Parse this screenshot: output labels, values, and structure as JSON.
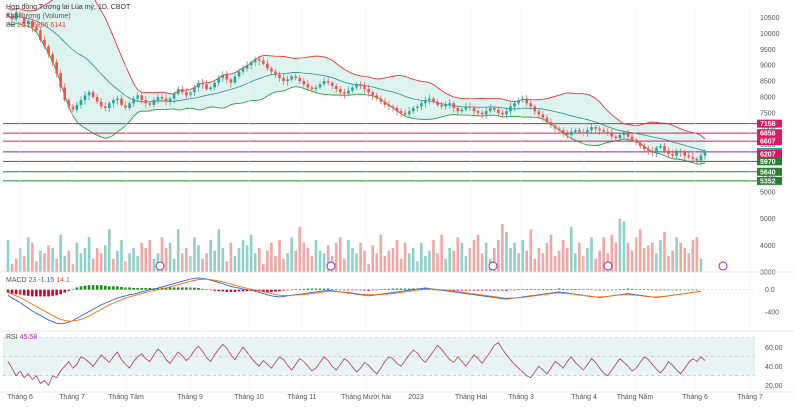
{
  "header": {
    "title": "Hợp đồng Tương lai Lúa mỳ, 1D, CBOT",
    "subtitle": "Khối lượng (Volume)",
    "bb_label": "BB",
    "bb_values": "20 2  6806  6141"
  },
  "colors": {
    "up": "#26a69a",
    "down": "#ef5350",
    "up_vol": "#8fd1c8",
    "down_vol": "#f4a6a3",
    "bb_upper": "#e53935",
    "bb_lower": "#2e9e3a",
    "bb_basis": "#2a8f86",
    "bb_fill": "#cfeeea",
    "hline_red": "#d81b60",
    "hline_green": "#2e7d32",
    "hline_purple": "#8e24aa",
    "macd_line": "#2962ff",
    "signal_line": "#ff6d00",
    "hist_pos": "#1b8a1b",
    "hist_neg": "#d1002a",
    "rsi_line": "#b0384f",
    "rsi_fill": "#e8f4f4",
    "axis_text": "#555555"
  },
  "chart_data": [
    {
      "type": "candlestick",
      "title": "Hợp đồng Tương lai Lúa mỳ, 1D, CBOT",
      "ylim": [
        4750,
        10900
      ],
      "y_ticks": [
        "10500",
        "10000",
        "9500",
        "9000",
        "8500",
        "8000",
        "7500",
        "7000",
        "6500",
        "6000",
        "5500",
        "5000"
      ],
      "x_ticks": [
        "Tháng 6",
        "Tháng 7",
        "Tháng Tám",
        "Tháng 9",
        "Tháng 10",
        "Tháng 11",
        "Tháng Mười hai",
        "2023",
        "Tháng Hai",
        "Tháng 3",
        "Tháng 4",
        "Tháng Năm",
        "Tháng 6",
        "Tháng 7"
      ],
      "closes": [
        10550,
        10450,
        10650,
        10500,
        10300,
        10400,
        10200,
        10100,
        9800,
        9600,
        9350,
        9100,
        8750,
        8300,
        7900,
        7700,
        7600,
        7750,
        7900,
        8050,
        8150,
        8000,
        7850,
        7700,
        7650,
        7800,
        7900,
        7950,
        7750,
        7650,
        7800,
        7950,
        8050,
        7900,
        7800,
        7750,
        7900,
        8000,
        7950,
        7850,
        7950,
        8100,
        8250,
        8150,
        8050,
        8150,
        8300,
        8450,
        8400,
        8250,
        8300,
        8450,
        8600,
        8700,
        8550,
        8450,
        8650,
        8800,
        8900,
        9000,
        9100,
        9200,
        9150,
        9050,
        8900,
        8800,
        8700,
        8600,
        8500,
        8550,
        8650,
        8600,
        8500,
        8400,
        8300,
        8250,
        8300,
        8400,
        8500,
        8450,
        8350,
        8250,
        8150,
        8100,
        8200,
        8300,
        8400,
        8350,
        8250,
        8150,
        8050,
        7950,
        7850,
        7750,
        7700,
        7650,
        7550,
        7500,
        7450,
        7550,
        7650,
        7700,
        7800,
        7900,
        7950,
        7850,
        7750,
        7700,
        7750,
        7800,
        7650,
        7550,
        7600,
        7700,
        7650,
        7550,
        7500,
        7450,
        7550,
        7650,
        7600,
        7500,
        7450,
        7550,
        7700,
        7800,
        7900,
        7950,
        7800,
        7700,
        7550,
        7450,
        7350,
        7200,
        7100,
        7000,
        6950,
        6850,
        6800,
        6900,
        6950,
        6900,
        6850,
        6950,
        7050,
        7000,
        6950,
        6900,
        6850,
        6750,
        6700,
        6800,
        6850,
        6750,
        6650,
        6550,
        6450,
        6350,
        6300,
        6250,
        6400,
        6450,
        6300,
        6200,
        6150,
        6300,
        6250,
        6150,
        6100,
        6050,
        6000,
        6150,
        6250
      ],
      "y_labels_right": [
        {
          "value": 7158,
          "color": "#d81b60"
        },
        {
          "value": 6858,
          "color": "#d81b60"
        },
        {
          "value": 6607,
          "color": "#d81b60"
        },
        {
          "value": 6269,
          "color": "#26a69a"
        },
        {
          "value": 6207,
          "color": "#d81b60"
        },
        {
          "value": 5970,
          "color": "#2e7d32"
        },
        {
          "value": 5640,
          "color": "#2e7d32"
        },
        {
          "value": 5352,
          "color": "#2e7d32"
        }
      ],
      "horizontal_levels": [
        {
          "value": 7158,
          "color": "#d81b60"
        },
        {
          "value": 6858,
          "color": "#d81b60"
        },
        {
          "value": 6607,
          "color": "#d81b60"
        },
        {
          "value": 6269,
          "color": "#8e24aa"
        },
        {
          "value": 5970,
          "color": "#2e7d32"
        },
        {
          "value": 5640,
          "color": "#2e7d32"
        },
        {
          "value": 5352,
          "color": "#2e7d32"
        }
      ]
    },
    {
      "type": "bar",
      "title": "Volume",
      "ylim": [
        3000,
        5700
      ],
      "y_ticks": [
        "5000",
        "4000",
        "3000"
      ],
      "values": [
        4200,
        3300,
        3500,
        3900,
        3600,
        4300,
        4100,
        3400,
        3800,
        3700,
        4000,
        3900,
        3500,
        4400,
        3600,
        3800,
        3300,
        4100,
        3700,
        3900,
        4300,
        3500,
        3900,
        3700,
        4000,
        4600,
        3500,
        3800,
        4200,
        3400,
        3700,
        3900,
        3600,
        4100,
        3900,
        4200,
        3500,
        3700,
        4300,
        3900,
        4100,
        3500,
        4600,
        3700,
        3900,
        3600,
        4300,
        4000,
        3500,
        3700,
        4200,
        3800,
        4600,
        3900,
        3400,
        4100,
        3600,
        3900,
        4200,
        4000,
        4400,
        3700,
        3900,
        3300,
        3800,
        4100,
        3600,
        4200,
        3500,
        3700,
        4300,
        3800,
        4700,
        4100,
        3900,
        3600,
        4200,
        3800,
        3700,
        4000,
        3600,
        4100,
        4300,
        3500,
        4200,
        3900,
        3700,
        4100,
        3800,
        3300,
        4000,
        3700,
        4400,
        3600,
        3800,
        3900,
        4200,
        3500,
        4100,
        3700,
        3900,
        3400,
        4100,
        3600,
        3800,
        4200,
        3700,
        4400,
        3500,
        3900,
        3800,
        4300,
        4100,
        3600,
        3900,
        4200,
        4400,
        3700,
        4100,
        3500,
        3900,
        4200,
        4800,
        4500,
        3900,
        4100,
        3700,
        4200,
        3800,
        4600,
        3500,
        3900,
        3700,
        4100,
        4400,
        3600,
        3800,
        4200,
        3900,
        4700,
        3700,
        4100,
        3600,
        3900,
        4300,
        3500,
        3800,
        4300,
        3700,
        4400,
        4100,
        5000,
        4900,
        4100,
        3800,
        4300,
        4600,
        3900,
        4000,
        4100,
        3700,
        4200,
        4500,
        3600,
        3800,
        4300,
        4100,
        3900,
        3700,
        4200,
        4300,
        3500
      ],
      "up_flags": [
        1,
        0,
        0,
        1,
        0,
        1,
        0,
        0,
        1,
        0,
        0,
        1,
        0,
        1,
        1,
        0,
        0,
        1,
        1,
        1,
        1,
        0,
        0,
        0,
        1,
        1,
        0,
        1,
        1,
        0,
        1,
        1,
        1,
        0,
        0,
        0,
        1,
        1,
        0,
        0,
        1,
        1,
        1,
        0,
        0,
        1,
        1,
        1,
        0,
        0,
        1,
        1,
        1,
        1,
        0,
        0,
        1,
        1,
        1,
        1,
        1,
        1,
        0,
        0,
        0,
        0,
        0,
        0,
        0,
        1,
        1,
        0,
        0,
        0,
        0,
        0,
        1,
        1,
        1,
        0,
        0,
        0,
        0,
        0,
        1,
        1,
        1,
        0,
        0,
        0,
        0,
        0,
        0,
        0,
        0,
        0,
        0,
        0,
        0,
        1,
        1,
        1,
        1,
        1,
        1,
        0,
        0,
        0,
        1,
        1,
        0,
        0,
        1,
        1,
        0,
        0,
        0,
        0,
        1,
        1,
        0,
        0,
        0,
        1,
        1,
        1,
        1,
        1,
        0,
        0,
        0,
        0,
        0,
        0,
        0,
        0,
        0,
        0,
        0,
        1,
        1,
        0,
        0,
        1,
        1,
        0,
        0,
        0,
        0,
        0,
        0,
        1,
        1,
        0,
        0,
        0,
        0,
        0,
        0,
        0,
        1,
        1,
        0,
        0,
        0,
        1,
        0,
        0,
        0,
        0,
        0,
        1,
        1
      ]
    },
    {
      "type": "macd",
      "title": "MACD",
      "legend_values": [
        "23",
        "-1.15",
        "14.1"
      ],
      "ylim": [
        -720,
        280
      ],
      "y_ticks": [
        "0.0",
        "-400"
      ],
      "macd": [
        -100,
        -150,
        -190,
        -230,
        -280,
        -330,
        -380,
        -420,
        -460,
        -500,
        -540,
        -570,
        -600,
        -610,
        -600,
        -580,
        -550,
        -510,
        -470,
        -430,
        -390,
        -350,
        -310,
        -270,
        -240,
        -210,
        -180,
        -150,
        -130,
        -110,
        -90,
        -80,
        -60,
        -40,
        -20,
        0,
        10,
        30,
        50,
        70,
        90,
        110,
        130,
        150,
        170,
        190,
        200,
        210,
        200,
        190,
        170,
        150,
        130,
        110,
        80,
        60,
        40,
        30,
        10,
        0,
        -10,
        -30,
        -50,
        -70,
        -90,
        -110,
        -120,
        -130,
        -120,
        -110,
        -100,
        -90,
        -80,
        -70,
        -60,
        -50,
        -40,
        -30,
        -20,
        -10,
        -20,
        -30,
        -40,
        -50,
        -60,
        -70,
        -80,
        -90,
        -100,
        -110,
        -100,
        -90,
        -80,
        -70,
        -60,
        -50,
        -40,
        -30,
        -20,
        -10,
        0,
        10,
        20,
        30,
        20,
        10,
        0,
        -10,
        -20,
        -30,
        -40,
        -50,
        -60,
        -70,
        -80,
        -90,
        -100,
        -110,
        -120,
        -130,
        -140,
        -150,
        -160,
        -170,
        -160,
        -150,
        -140,
        -130,
        -120,
        -110,
        -100,
        -90,
        -80,
        -70,
        -60,
        -50,
        -40,
        -50,
        -60,
        -70,
        -80,
        -90,
        -100,
        -110,
        -120,
        -130,
        -140,
        -130,
        -120,
        -110,
        -100,
        -90,
        -80,
        -70,
        -80,
        -90,
        -100,
        -110,
        -120,
        -130,
        -140,
        -130,
        -120,
        -110,
        -100,
        -90,
        -80,
        -70,
        -60,
        -50,
        -40,
        -30
      ],
      "signal": [
        -50,
        -80,
        -110,
        -140,
        -180,
        -220,
        -260,
        -300,
        -340,
        -380,
        -420,
        -460,
        -500,
        -530,
        -550,
        -560,
        -560,
        -550,
        -530,
        -500,
        -470,
        -430,
        -390,
        -350,
        -310,
        -270,
        -240,
        -210,
        -180,
        -150,
        -130,
        -110,
        -90,
        -70,
        -50,
        -30,
        -15,
        0,
        15,
        30,
        50,
        70,
        90,
        110,
        130,
        150,
        165,
        180,
        185,
        185,
        180,
        170,
        155,
        140,
        120,
        100,
        80,
        60,
        40,
        25,
        10,
        -5,
        -20,
        -35,
        -50,
        -70,
        -85,
        -100,
        -105,
        -105,
        -100,
        -95,
        -90,
        -85,
        -80,
        -70,
        -60,
        -50,
        -40,
        -30,
        -30,
        -35,
        -40,
        -45,
        -50,
        -60,
        -70,
        -80,
        -85,
        -90,
        -90,
        -88,
        -85,
        -80,
        -75,
        -70,
        -60,
        -50,
        -40,
        -30,
        -20,
        -10,
        0,
        10,
        10,
        10,
        5,
        0,
        -5,
        -15,
        -25,
        -35,
        -45,
        -55,
        -65,
        -75,
        -85,
        -95,
        -105,
        -115,
        -125,
        -135,
        -145,
        -150,
        -150,
        -148,
        -145,
        -140,
        -130,
        -120,
        -110,
        -100,
        -90,
        -80,
        -70,
        -60,
        -60,
        -65,
        -70,
        -75,
        -85,
        -95,
        -105,
        -115,
        -125,
        -130,
        -130,
        -125,
        -120,
        -110,
        -100,
        -95,
        -90,
        -90,
        -95,
        -100,
        -105,
        -115,
        -125,
        -130,
        -130,
        -125,
        -120,
        -110,
        -100,
        -90,
        -80,
        -70,
        -60,
        -50,
        -40
      ]
    },
    {
      "type": "line",
      "title": "RSI",
      "legend_values": [
        "45.58"
      ],
      "ylim": [
        15,
        75
      ],
      "y_ticks": [
        "60.00",
        "40.00",
        "20.00"
      ],
      "values": [
        45,
        38,
        30,
        35,
        28,
        32,
        26,
        30,
        22,
        25,
        20,
        30,
        28,
        35,
        40,
        45,
        38,
        42,
        50,
        48,
        44,
        40,
        46,
        52,
        48,
        44,
        50,
        55,
        47,
        42,
        38,
        45,
        50,
        53,
        48,
        45,
        52,
        58,
        54,
        47,
        43,
        49,
        55,
        51,
        46,
        50,
        57,
        61,
        56,
        49,
        45,
        52,
        58,
        63,
        59,
        52,
        47,
        54,
        60,
        55,
        49,
        44,
        40,
        46,
        42,
        38,
        44,
        50,
        47,
        41,
        36,
        42,
        48,
        45,
        40,
        35,
        38,
        44,
        50,
        46,
        40,
        36,
        42,
        48,
        45,
        39,
        34,
        38,
        44,
        41,
        36,
        32,
        38,
        45,
        50,
        48,
        43,
        40,
        46,
        52,
        57,
        54,
        48,
        44,
        50,
        56,
        62,
        58,
        52,
        47,
        44,
        50,
        45,
        40,
        46,
        52,
        48,
        43,
        49,
        55,
        62,
        65,
        58,
        52,
        47,
        42,
        38,
        34,
        30,
        28,
        34,
        40,
        36,
        32,
        38,
        45,
        42,
        38,
        45,
        50,
        44,
        40,
        36,
        42,
        48,
        44,
        38,
        33,
        30,
        36,
        42,
        48,
        44,
        40,
        35,
        38,
        44,
        50,
        47,
        42,
        37,
        33,
        38,
        45,
        41,
        36,
        32,
        38,
        44,
        48,
        45,
        50,
        46
      ]
    }
  ]
}
